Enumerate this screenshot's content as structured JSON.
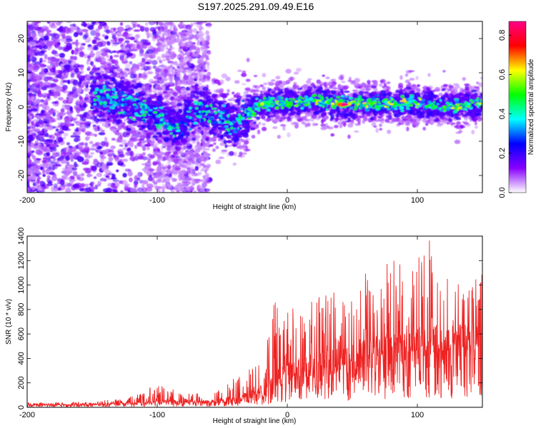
{
  "figure_title": "S197.2025.291.09.49.E16",
  "chart_data": [
    {
      "type": "heatmap",
      "title": "S197.2025.291.09.49.E16",
      "xlabel": "Height of straight line (km)",
      "ylabel": "Frequency (Hz)",
      "xlim": [
        -200,
        150
      ],
      "ylim": [
        -25,
        25
      ],
      "xticks": [
        -200,
        -100,
        0,
        100
      ],
      "yticks": [
        -20,
        -10,
        0,
        10,
        20
      ],
      "colorbar": {
        "label": "Normalized spectral amplitude",
        "range": [
          0.0,
          0.87
        ],
        "ticks": [
          0.0,
          0.2,
          0.4,
          0.6,
          0.8
        ],
        "colors": [
          "#ffffff",
          "#8800ff",
          "#0000ff",
          "#00ffff",
          "#00ff00",
          "#ffff00",
          "#ff0000",
          "#ff0088"
        ]
      },
      "ridge_center_hz": [
        {
          "x": -145,
          "y": 3
        },
        {
          "x": -120,
          "y": 1
        },
        {
          "x": -100,
          "y": -3
        },
        {
          "x": -85,
          "y": -6
        },
        {
          "x": -70,
          "y": -1
        },
        {
          "x": -55,
          "y": -2
        },
        {
          "x": -40,
          "y": -5
        },
        {
          "x": -30,
          "y": -2
        },
        {
          "x": -20,
          "y": 1
        },
        {
          "x": 0,
          "y": 1
        },
        {
          "x": 20,
          "y": 2
        },
        {
          "x": 45,
          "y": 1
        },
        {
          "x": 80,
          "y": 1
        },
        {
          "x": 100,
          "y": 1
        },
        {
          "x": 120,
          "y": 0
        },
        {
          "x": 150,
          "y": 1
        }
      ],
      "peak": {
        "x": 44,
        "y": 0.7,
        "value": 0.87
      }
    },
    {
      "type": "line",
      "xlabel": "Height of straight line (km)",
      "ylabel": "SNR (10 * v/v)",
      "xlim": [
        -200,
        150
      ],
      "ylim": [
        0,
        1400
      ],
      "xticks": [
        -200,
        -100,
        0,
        100
      ],
      "yticks": [
        0,
        200,
        400,
        600,
        800,
        1000,
        1200,
        1400
      ],
      "color": "#ee2222",
      "envelope": {
        "x": [
          -200,
          -150,
          -120,
          -100,
          -80,
          -60,
          -40,
          -30,
          -20,
          -10,
          0,
          10,
          20,
          30,
          40,
          50,
          60,
          70,
          80,
          90,
          100,
          110,
          120,
          130,
          140,
          150
        ],
        "baseline": [
          20,
          20,
          30,
          40,
          40,
          40,
          60,
          90,
          120,
          180,
          260,
          280,
          300,
          320,
          330,
          360,
          380,
          400,
          430,
          450,
          460,
          470,
          470,
          480,
          490,
          500
        ],
        "peak": [
          40,
          45,
          90,
          190,
          120,
          110,
          250,
          300,
          450,
          870,
          860,
          800,
          900,
          920,
          1000,
          1050,
          1100,
          900,
          1320,
          1100,
          1300,
          1400,
          1050,
          1100,
          1050,
          1100
        ]
      }
    }
  ]
}
